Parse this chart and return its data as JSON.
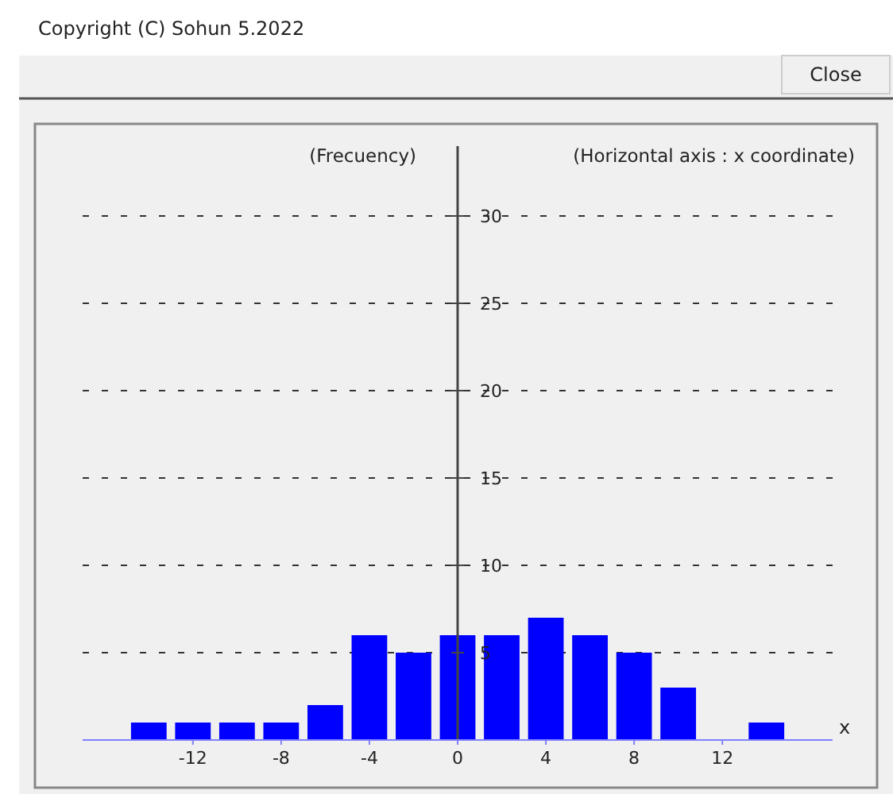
{
  "chart_data": {
    "type": "bar",
    "ylabel": "(Frecuency)",
    "xlabel": "x",
    "annotations": [
      "Copyright (C) Sohun 5.2022",
      "Close",
      "(Horizontal axis : x coordinate)"
    ],
    "x": [
      -14,
      -12,
      -10,
      -8,
      -6,
      -4,
      -2,
      0,
      2,
      4,
      6,
      8,
      10,
      12,
      14
    ],
    "values": [
      1,
      1,
      1,
      1,
      2,
      6,
      5,
      6,
      6,
      7,
      6,
      5,
      3,
      0,
      1
    ],
    "color": "#0000ff",
    "xlim": [
      -17,
      17
    ],
    "xticks": [
      -12,
      -8,
      -4,
      0,
      4,
      8,
      12
    ],
    "ylim": [
      0,
      34
    ],
    "yticks": [
      5,
      10,
      15,
      20,
      25,
      30
    ],
    "grid": "y"
  }
}
